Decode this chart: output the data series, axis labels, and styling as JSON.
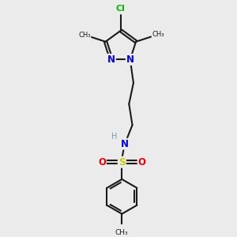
{
  "background_color": "#ebebeb",
  "bond_color": "#1a1a1a",
  "N_color": "#0000ee",
  "O_color": "#ee0000",
  "S_color": "#cccc00",
  "Cl_color": "#00bb00",
  "H_color": "#6a9fbf",
  "line_width": 1.5,
  "figsize": [
    3.0,
    3.0
  ],
  "dpi": 100,
  "xlim": [
    0,
    10
  ],
  "ylim": [
    0,
    10
  ]
}
